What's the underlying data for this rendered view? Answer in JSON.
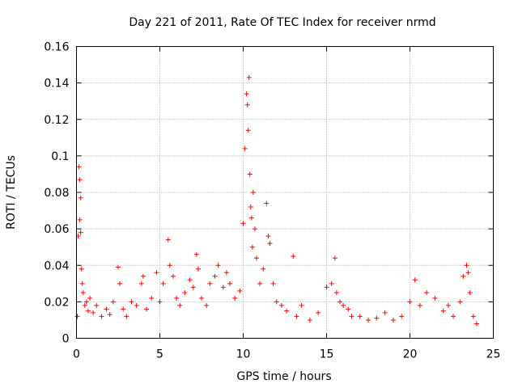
{
  "chart_data": {
    "type": "scatter",
    "title": "Day 221 of 2011, Rate Of TEC Index for receiver nrmd",
    "xlabel": "GPS time / hours",
    "ylabel": "ROTI / TECUs",
    "xlim": [
      0,
      25
    ],
    "ylim": [
      0,
      0.16
    ],
    "grid": true,
    "marker": "+",
    "color": "#ff0000",
    "x_ticks": [
      0,
      5,
      10,
      15,
      20,
      25
    ],
    "x_tick_labels": [
      "0",
      "5",
      "10",
      "15",
      "20",
      "25"
    ],
    "y_ticks": [
      0,
      0.02,
      0.04,
      0.06,
      0.08,
      0.1,
      0.12,
      0.14,
      0.16
    ],
    "y_tick_labels": [
      "0",
      "0.02",
      "0.04",
      "0.06",
      "0.08",
      "0.1",
      "0.12",
      "0.14",
      "0.16"
    ],
    "series": [
      {
        "name": "ROTI",
        "x": [
          0.05,
          0.1,
          0.15,
          0.2,
          0.2,
          0.25,
          0.25,
          0.3,
          0.35,
          0.4,
          0.5,
          0.6,
          0.7,
          0.8,
          1.0,
          1.2,
          1.5,
          1.8,
          2.0,
          2.2,
          2.5,
          2.6,
          2.8,
          3.0,
          3.3,
          3.6,
          3.9,
          4.0,
          4.2,
          4.5,
          4.8,
          5.0,
          5.2,
          5.5,
          5.6,
          5.8,
          6.0,
          6.2,
          6.5,
          6.8,
          7.0,
          7.2,
          7.3,
          7.5,
          7.8,
          8.0,
          8.3,
          8.5,
          8.8,
          9.0,
          9.2,
          9.5,
          9.8,
          10.0,
          10.1,
          10.2,
          10.25,
          10.3,
          10.35,
          10.4,
          10.45,
          10.5,
          10.55,
          10.6,
          10.7,
          10.8,
          11.0,
          11.2,
          11.4,
          11.5,
          11.6,
          11.8,
          12.0,
          12.3,
          12.6,
          13.0,
          13.2,
          13.5,
          14.0,
          14.5,
          15.0,
          15.3,
          15.5,
          15.6,
          15.8,
          16.0,
          16.3,
          16.5,
          17.0,
          17.5,
          18.0,
          18.5,
          19.0,
          19.5,
          20.0,
          20.3,
          20.6,
          21.0,
          21.5,
          22.0,
          22.3,
          22.6,
          23.0,
          23.2,
          23.4,
          23.5,
          23.6,
          23.8,
          24.0
        ],
        "y": [
          0.012,
          0.056,
          0.094,
          0.087,
          0.065,
          0.058,
          0.077,
          0.038,
          0.03,
          0.025,
          0.018,
          0.02,
          0.015,
          0.022,
          0.014,
          0.018,
          0.012,
          0.016,
          0.013,
          0.02,
          0.039,
          0.03,
          0.016,
          0.012,
          0.02,
          0.018,
          0.03,
          0.034,
          0.016,
          0.022,
          0.036,
          0.02,
          0.03,
          0.054,
          0.04,
          0.034,
          0.022,
          0.018,
          0.025,
          0.032,
          0.028,
          0.046,
          0.038,
          0.022,
          0.018,
          0.03,
          0.034,
          0.04,
          0.028,
          0.036,
          0.03,
          0.022,
          0.026,
          0.063,
          0.104,
          0.134,
          0.128,
          0.114,
          0.143,
          0.09,
          0.072,
          0.066,
          0.05,
          0.08,
          0.06,
          0.044,
          0.03,
          0.038,
          0.074,
          0.056,
          0.052,
          0.03,
          0.02,
          0.018,
          0.015,
          0.045,
          0.012,
          0.018,
          0.01,
          0.014,
          0.028,
          0.03,
          0.044,
          0.025,
          0.02,
          0.018,
          0.016,
          0.012,
          0.012,
          0.01,
          0.011,
          0.014,
          0.01,
          0.012,
          0.02,
          0.032,
          0.018,
          0.025,
          0.022,
          0.015,
          0.018,
          0.012,
          0.02,
          0.034,
          0.04,
          0.036,
          0.025,
          0.012,
          0.008
        ]
      }
    ]
  }
}
